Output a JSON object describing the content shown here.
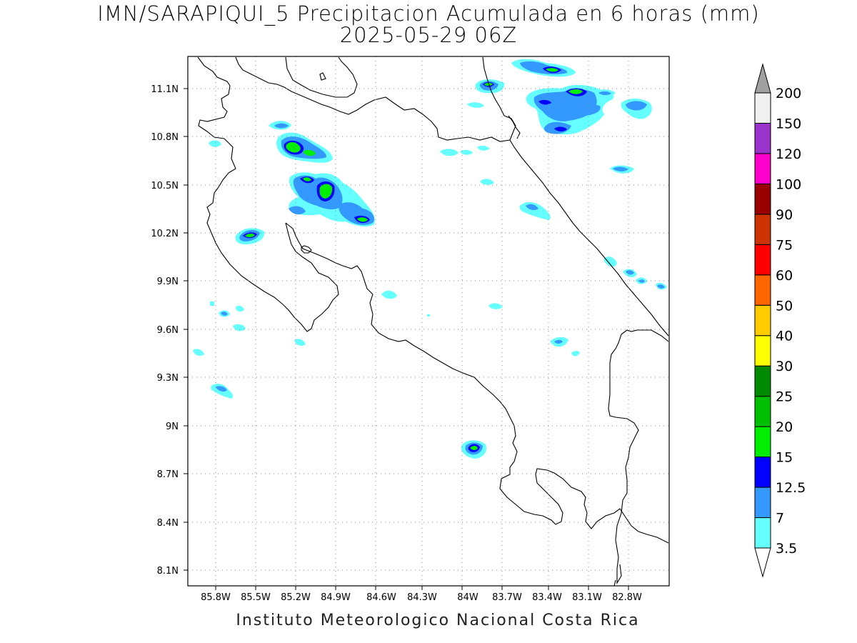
{
  "titles": {
    "line1": "IMN/SARAPIQUI_5 Precipitacion Acumulada en 6 horas (mm)",
    "line2": "2025-05-29 06Z"
  },
  "footer": "Instituto Meteorologico Nacional Costa Rica",
  "map": {
    "lon_range": [
      -86.0,
      -82.4
    ],
    "lat_range": [
      8.0,
      11.3
    ],
    "lon_ticks": [
      {
        "value": -85.8,
        "label": "85.8W"
      },
      {
        "value": -85.5,
        "label": "85.5W"
      },
      {
        "value": -85.2,
        "label": "85.2W"
      },
      {
        "value": -84.9,
        "label": "84.9W"
      },
      {
        "value": -84.6,
        "label": "84.6W"
      },
      {
        "value": -84.3,
        "label": "84.3W"
      },
      {
        "value": -84.0,
        "label": "84W"
      },
      {
        "value": -83.7,
        "label": "83.7W"
      },
      {
        "value": -83.4,
        "label": "83.4W"
      },
      {
        "value": -83.1,
        "label": "83.1W"
      },
      {
        "value": -82.8,
        "label": "82.8W"
      }
    ],
    "lat_ticks": [
      {
        "value": 11.1,
        "label": "11.1N"
      },
      {
        "value": 10.8,
        "label": "10.8N"
      },
      {
        "value": 10.5,
        "label": "10.5N"
      },
      {
        "value": 10.2,
        "label": "10.2N"
      },
      {
        "value": 9.9,
        "label": "9.9N"
      },
      {
        "value": 9.6,
        "label": "9.6N"
      },
      {
        "value": 9.3,
        "label": "9.3N"
      },
      {
        "value": 9.0,
        "label": "9N"
      },
      {
        "value": 8.7,
        "label": "8.7N"
      },
      {
        "value": 8.4,
        "label": "8.4N"
      },
      {
        "value": 8.1,
        "label": "8.1N"
      }
    ],
    "grid": "dotted"
  },
  "colorbar": {
    "levels": [
      {
        "label": "3.5",
        "color": "#ffffff"
      },
      {
        "label": "7",
        "color": "#66ffff"
      },
      {
        "label": "12.5",
        "color": "#3399ff"
      },
      {
        "label": "15",
        "color": "#0000ff"
      },
      {
        "label": "20",
        "color": "#00ee00"
      },
      {
        "label": "25",
        "color": "#00c000"
      },
      {
        "label": "30",
        "color": "#008a00"
      },
      {
        "label": "40",
        "color": "#ffff00"
      },
      {
        "label": "50",
        "color": "#ffcc00"
      },
      {
        "label": "60",
        "color": "#ff6600"
      },
      {
        "label": "75",
        "color": "#ff0000"
      },
      {
        "label": "90",
        "color": "#cc3300"
      },
      {
        "label": "100",
        "color": "#990000"
      },
      {
        "label": "120",
        "color": "#ff00cc"
      },
      {
        "label": "150",
        "color": "#9933cc"
      },
      {
        "label": "200",
        "color": "#f0f0f0"
      }
    ],
    "over_color": "#a0a0a0",
    "under_color": "#ffffff"
  }
}
